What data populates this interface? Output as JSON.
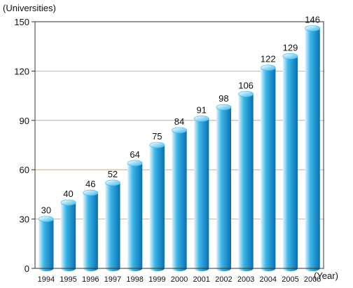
{
  "chart_data": {
    "type": "bar",
    "title": "",
    "ylabel": "(Universities)",
    "xlabel": "(Year)",
    "categories": [
      "1994",
      "1995",
      "1996",
      "1997",
      "1998",
      "1999",
      "2000",
      "2001",
      "2002",
      "2003",
      "2004",
      "2005",
      "2006"
    ],
    "values": [
      30,
      40,
      46,
      52,
      64,
      75,
      84,
      91,
      98,
      106,
      122,
      129,
      146
    ],
    "ylim": [
      0,
      150
    ],
    "yticks": [
      0,
      30,
      60,
      90,
      120,
      150
    ],
    "grid": true,
    "bar_style": "cylinder",
    "colors": {
      "bar_light": "#dff4fc",
      "bar_mid": "#3cb6e8",
      "bar_dark": "#0a6fb0",
      "grid": "#c89a8a",
      "frame": "#333333"
    }
  }
}
